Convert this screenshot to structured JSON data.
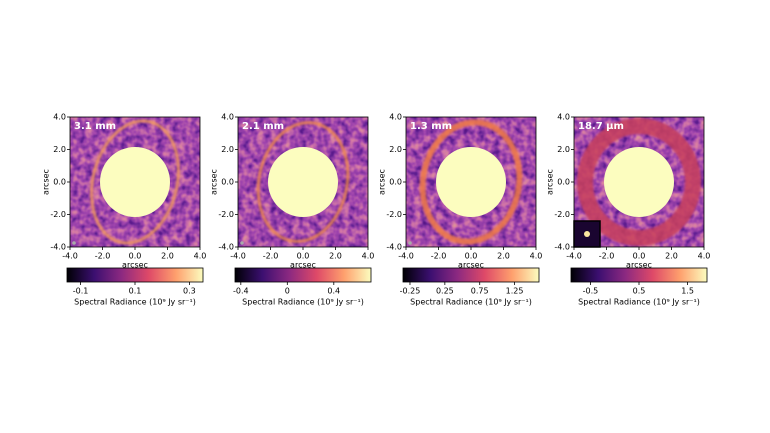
{
  "chart_data": [
    {
      "type": "image",
      "title": "3.1 mm",
      "xlabel": "arcsec",
      "ylabel": "arcsec",
      "xlim": [
        -4,
        4
      ],
      "ylim": [
        -4,
        4
      ],
      "xticks": [
        {
          "value": -4,
          "label": "-4.0"
        },
        {
          "value": -2,
          "label": "-2.0"
        },
        {
          "value": 0,
          "label": "0.0"
        },
        {
          "value": 2,
          "label": "2.0"
        },
        {
          "value": 4,
          "label": "4.0"
        }
      ],
      "yticks": [
        {
          "value": -4,
          "label": "-4.0"
        },
        {
          "value": -2,
          "label": "-2.0"
        },
        {
          "value": 0,
          "label": "0.0"
        },
        {
          "value": 2,
          "label": "2.0"
        },
        {
          "value": 4,
          "label": "4.0"
        }
      ],
      "colorbar": {
        "label": "Spectral Radiance (10⁹ Jy sr⁻¹)",
        "clim": [
          -0.15,
          0.35
        ],
        "ticks": [
          -0.1,
          0.1,
          0.3
        ]
      }
    },
    {
      "type": "image",
      "title": "2.1 mm",
      "xlabel": "arcsec",
      "ylabel": "arcsec",
      "xlim": [
        -4,
        4
      ],
      "ylim": [
        -4,
        4
      ],
      "xticks": [
        {
          "value": -4,
          "label": "-4.0"
        },
        {
          "value": -2,
          "label": "-2.0"
        },
        {
          "value": 0,
          "label": "0.0"
        },
        {
          "value": 2,
          "label": "2.0"
        },
        {
          "value": 4,
          "label": "4.0"
        }
      ],
      "yticks": [
        {
          "value": -4,
          "label": "-4.0"
        },
        {
          "value": -2,
          "label": "-2.0"
        },
        {
          "value": 0,
          "label": "0.0"
        },
        {
          "value": 2,
          "label": "2.0"
        },
        {
          "value": 4,
          "label": "4.0"
        }
      ],
      "colorbar": {
        "label": "Spectral Radiance (10⁹ Jy sr⁻¹)",
        "clim": [
          -0.45,
          0.72
        ],
        "ticks": [
          -0.4,
          0,
          0.4
        ]
      }
    },
    {
      "type": "image",
      "title": "1.3 mm",
      "xlabel": "arcsec",
      "ylabel": "arcsec",
      "xlim": [
        -4,
        4
      ],
      "ylim": [
        -4,
        4
      ],
      "xticks": [
        {
          "value": -4,
          "label": "-4.0"
        },
        {
          "value": -2,
          "label": "-2.0"
        },
        {
          "value": 0,
          "label": "0.0"
        },
        {
          "value": 2,
          "label": "2.0"
        },
        {
          "value": 4,
          "label": "4.0"
        }
      ],
      "yticks": [
        {
          "value": -4,
          "label": "-4.0"
        },
        {
          "value": -2,
          "label": "-2.0"
        },
        {
          "value": 0,
          "label": "0.0"
        },
        {
          "value": 2,
          "label": "2.0"
        },
        {
          "value": 4,
          "label": "4.0"
        }
      ],
      "colorbar": {
        "label": "Spectral Radiance (10⁹ Jy sr⁻¹)",
        "clim": [
          -0.35,
          1.6
        ],
        "ticks": [
          -0.25,
          0.25,
          0.75,
          1.25
        ]
      }
    },
    {
      "type": "image",
      "title": "18.7 μm",
      "xlabel": "arcsec",
      "ylabel": "arcsec",
      "xlim": [
        -4,
        4
      ],
      "ylim": [
        -4,
        4
      ],
      "xticks": [
        {
          "value": -4,
          "label": "-4.0"
        },
        {
          "value": -2,
          "label": "-2.0"
        },
        {
          "value": 0,
          "label": "0.0"
        },
        {
          "value": 2,
          "label": "2.0"
        },
        {
          "value": 4,
          "label": "4.0"
        }
      ],
      "yticks": [
        {
          "value": -4,
          "label": "-4.0"
        },
        {
          "value": -2,
          "label": "-2.0"
        },
        {
          "value": 0,
          "label": "0.0"
        },
        {
          "value": 2,
          "label": "2.0"
        },
        {
          "value": 4,
          "label": "4.0"
        }
      ],
      "colorbar": {
        "label": "Spectral Radiance (10⁹ Jy sr⁻¹)",
        "clim": [
          -0.9,
          1.9
        ],
        "ticks": [
          -0.5,
          0.5,
          1.5
        ]
      }
    }
  ]
}
